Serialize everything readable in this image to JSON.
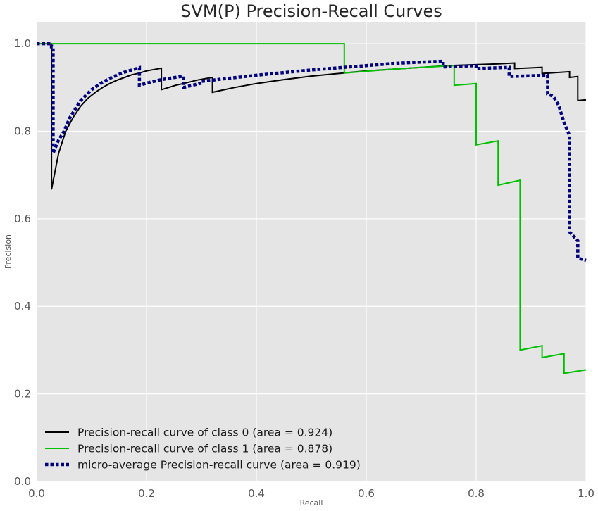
{
  "chart_data": {
    "type": "line",
    "title": "SVM(P) Precision-Recall Curves",
    "xlabel": "Recall",
    "ylabel": "Precision",
    "xlim": [
      0.0,
      1.0
    ],
    "ylim": [
      0.0,
      1.05
    ],
    "x_ticks": [
      "0.0",
      "0.2",
      "0.4",
      "0.6",
      "0.8",
      "1.0"
    ],
    "y_ticks": [
      "0.0",
      "0.2",
      "0.4",
      "0.6",
      "0.8",
      "1.0"
    ],
    "grid": true,
    "legend_position": "lower-left",
    "colors": {
      "background": "#e5e5e5",
      "grid": "#ffffff",
      "class0": "#000000",
      "class1": "#00c000",
      "micro": "#000080"
    },
    "series": [
      {
        "name": "Precision-recall curve of class 0 (area = 0.924)",
        "color": "#000000",
        "style": "solid",
        "points": [
          [
            0.0,
            1.0
          ],
          [
            0.027,
            1.0
          ],
          [
            0.027,
            0.667
          ],
          [
            0.04,
            0.75
          ],
          [
            0.053,
            0.8
          ],
          [
            0.067,
            0.833
          ],
          [
            0.08,
            0.857
          ],
          [
            0.093,
            0.875
          ],
          [
            0.107,
            0.889
          ],
          [
            0.12,
            0.9
          ],
          [
            0.133,
            0.909
          ],
          [
            0.147,
            0.917
          ],
          [
            0.16,
            0.923
          ],
          [
            0.173,
            0.929
          ],
          [
            0.187,
            0.933
          ],
          [
            0.2,
            0.938
          ],
          [
            0.227,
            0.944
          ],
          [
            0.227,
            0.895
          ],
          [
            0.24,
            0.9
          ],
          [
            0.253,
            0.905
          ],
          [
            0.267,
            0.909
          ],
          [
            0.28,
            0.913
          ],
          [
            0.293,
            0.917
          ],
          [
            0.32,
            0.923
          ],
          [
            0.32,
            0.889
          ],
          [
            0.36,
            0.9
          ],
          [
            0.4,
            0.909
          ],
          [
            0.45,
            0.918
          ],
          [
            0.5,
            0.926
          ],
          [
            0.55,
            0.932
          ],
          [
            0.6,
            0.938
          ],
          [
            0.65,
            0.942
          ],
          [
            0.7,
            0.946
          ],
          [
            0.75,
            0.95
          ],
          [
            0.8,
            0.952
          ],
          [
            0.84,
            0.954
          ],
          [
            0.87,
            0.956
          ],
          [
            0.87,
            0.943
          ],
          [
            0.92,
            0.946
          ],
          [
            0.92,
            0.932
          ],
          [
            0.97,
            0.936
          ],
          [
            0.97,
            0.923
          ],
          [
            0.985,
            0.925
          ],
          [
            0.985,
            0.87
          ],
          [
            1.0,
            0.872
          ]
        ]
      },
      {
        "name": "Precision-recall curve of class 1 (area = 0.878)",
        "color": "#00c000",
        "style": "solid",
        "points": [
          [
            0.0,
            1.0
          ],
          [
            0.56,
            1.0
          ],
          [
            0.56,
            0.933
          ],
          [
            0.6,
            0.937
          ],
          [
            0.65,
            0.942
          ],
          [
            0.7,
            0.946
          ],
          [
            0.76,
            0.95
          ],
          [
            0.76,
            0.905
          ],
          [
            0.8,
            0.909
          ],
          [
            0.8,
            0.769
          ],
          [
            0.84,
            0.778
          ],
          [
            0.84,
            0.677
          ],
          [
            0.88,
            0.688
          ],
          [
            0.88,
            0.3
          ],
          [
            0.92,
            0.31
          ],
          [
            0.92,
            0.283
          ],
          [
            0.96,
            0.292
          ],
          [
            0.96,
            0.247
          ],
          [
            1.0,
            0.255
          ]
        ]
      },
      {
        "name": "micro-average Precision-recall curve (area = 0.919)",
        "color": "#000080",
        "style": "dotted",
        "points": [
          [
            0.0,
            1.0
          ],
          [
            0.027,
            1.0
          ],
          [
            0.027,
            0.993
          ],
          [
            0.03,
            0.993
          ],
          [
            0.03,
            0.75
          ],
          [
            0.04,
            0.78
          ],
          [
            0.05,
            0.8
          ],
          [
            0.06,
            0.83
          ],
          [
            0.08,
            0.87
          ],
          [
            0.1,
            0.895
          ],
          [
            0.12,
            0.912
          ],
          [
            0.14,
            0.925
          ],
          [
            0.16,
            0.935
          ],
          [
            0.187,
            0.945
          ],
          [
            0.187,
            0.905
          ],
          [
            0.2,
            0.91
          ],
          [
            0.227,
            0.918
          ],
          [
            0.267,
            0.926
          ],
          [
            0.267,
            0.9
          ],
          [
            0.3,
            0.91
          ],
          [
            0.3,
            0.914
          ],
          [
            0.35,
            0.921
          ],
          [
            0.4,
            0.928
          ],
          [
            0.45,
            0.934
          ],
          [
            0.5,
            0.94
          ],
          [
            0.55,
            0.945
          ],
          [
            0.6,
            0.95
          ],
          [
            0.65,
            0.955
          ],
          [
            0.7,
            0.958
          ],
          [
            0.74,
            0.96
          ],
          [
            0.74,
            0.947
          ],
          [
            0.8,
            0.95
          ],
          [
            0.8,
            0.943
          ],
          [
            0.86,
            0.946
          ],
          [
            0.86,
            0.925
          ],
          [
            0.93,
            0.928
          ],
          [
            0.93,
            0.885
          ],
          [
            0.94,
            0.88
          ],
          [
            0.95,
            0.86
          ],
          [
            0.96,
            0.82
          ],
          [
            0.97,
            0.79
          ],
          [
            0.97,
            0.57
          ],
          [
            0.985,
            0.55
          ],
          [
            0.985,
            0.51
          ],
          [
            1.0,
            0.505
          ]
        ]
      }
    ]
  }
}
